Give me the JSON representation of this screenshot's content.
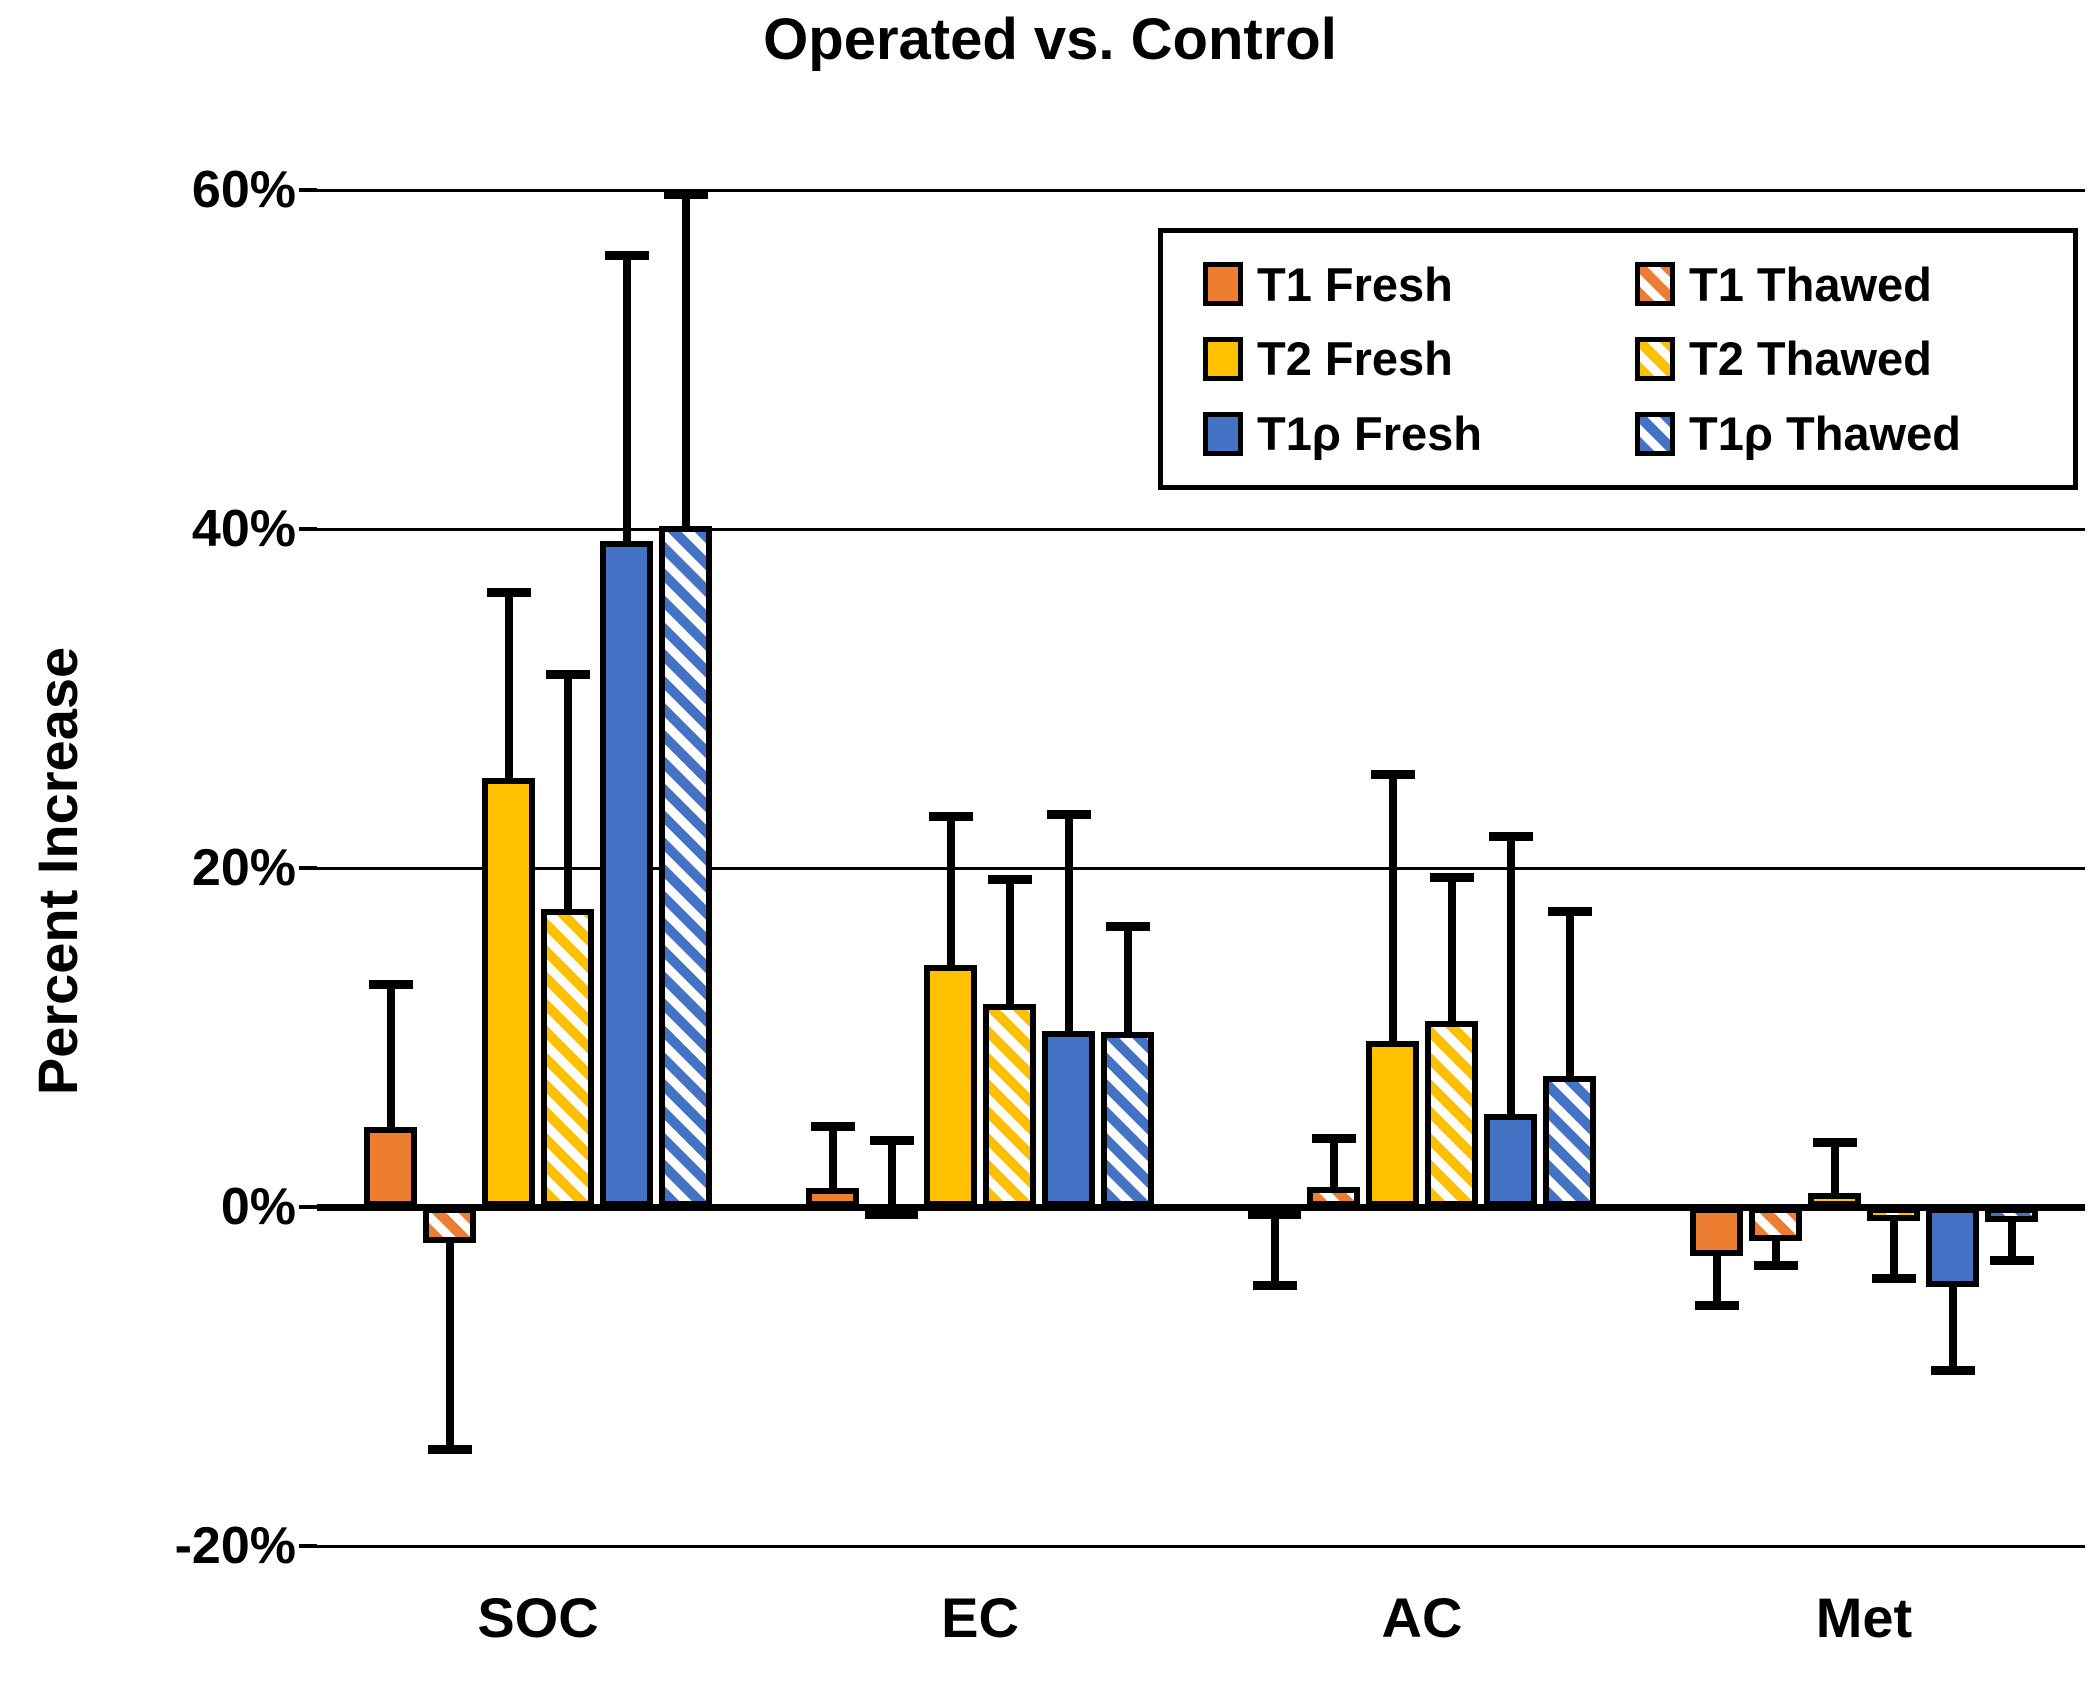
{
  "title": "Operated vs. Control",
  "chart_data": {
    "type": "bar",
    "title": "Operated vs. Control",
    "xlabel": "",
    "ylabel": "Percent Increase",
    "categories": [
      "SOC",
      "EC",
      "AC",
      "Met"
    ],
    "y_ticks": [
      {
        "label": "60%",
        "value": 60
      },
      {
        "label": "40%",
        "value": 40
      },
      {
        "label": "20%",
        "value": 20
      },
      {
        "label": "0%",
        "value": 0
      },
      {
        "label": "-20%",
        "value": -20
      }
    ],
    "ylim": [
      -20,
      60
    ],
    "grid": true,
    "legend_position": "top-right",
    "error_bars": "one-sided, tip values given per category",
    "series": [
      {
        "name": "T1 Fresh",
        "color": "#ED7D31",
        "pattern": "solid",
        "values": [
          4.7,
          1.1,
          -0.2,
          -2.9
        ],
        "error_tips": [
          13.4,
          5.0,
          -4.9,
          -6.1
        ]
      },
      {
        "name": "T1 Thawed",
        "color": "#ED7D31",
        "pattern": "hatch",
        "values": [
          -2.1,
          -0.2,
          1.2,
          -2.0
        ],
        "error_tips": [
          -14.6,
          4.2,
          4.3,
          -3.7
        ]
      },
      {
        "name": "T2 Fresh",
        "color": "#FFC000",
        "pattern": "solid",
        "values": [
          25.3,
          14.3,
          9.8,
          0.8
        ],
        "error_tips": [
          36.5,
          23.3,
          25.8,
          4.1
        ]
      },
      {
        "name": "T2 Thawed",
        "color": "#FFC000",
        "pattern": "hatch",
        "values": [
          17.6,
          12.0,
          11.0,
          -0.8
        ],
        "error_tips": [
          31.7,
          19.6,
          19.7,
          -4.5
        ]
      },
      {
        "name": "T1ρ Fresh",
        "color": "#4472C4",
        "pattern": "solid",
        "values": [
          39.3,
          10.4,
          5.5,
          -4.7
        ],
        "error_tips": [
          56.4,
          23.4,
          22.1,
          -9.9
        ]
      },
      {
        "name": "T1ρ Thawed",
        "color": "#4472C4",
        "pattern": "hatch",
        "values": [
          40.2,
          10.3,
          7.7,
          -0.9
        ],
        "error_tips": [
          60.0,
          16.8,
          17.7,
          -3.4
        ]
      }
    ]
  }
}
